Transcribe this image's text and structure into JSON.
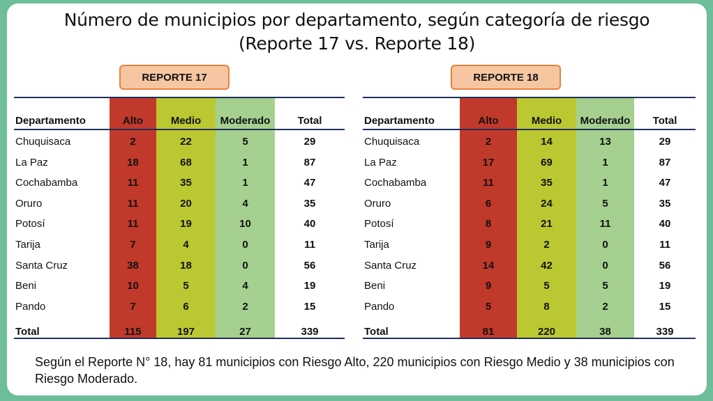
{
  "title_line1": "Número de municipios por departamento, según categoría de riesgo",
  "title_line2": "(Reporte 17 vs. Reporte 18)",
  "headers": [
    "Departamento",
    "Alto",
    "Medio",
    "Moderado",
    "Total"
  ],
  "colors": {
    "alto": "#c1392b",
    "medio": "#bcc832",
    "moderado": "#a5d08f",
    "label_bg": "#f6c6a3",
    "label_border": "#e8803c",
    "background": "#6fbe9a"
  },
  "reports": [
    {
      "label": "REPORTE 17",
      "rows": [
        [
          "Chuquisaca",
          "2",
          "22",
          "5",
          "29"
        ],
        [
          "La Paz",
          "18",
          "68",
          "1",
          "87"
        ],
        [
          "Cochabamba",
          "11",
          "35",
          "1",
          "47"
        ],
        [
          "Oruro",
          "11",
          "20",
          "4",
          "35"
        ],
        [
          "Potosí",
          "11",
          "19",
          "10",
          "40"
        ],
        [
          "Tarija",
          "7",
          "4",
          "0",
          "11"
        ],
        [
          "Santa Cruz",
          "38",
          "18",
          "0",
          "56"
        ],
        [
          "Beni",
          "10",
          "5",
          "4",
          "19"
        ],
        [
          "Pando",
          "7",
          "6",
          "2",
          "15"
        ]
      ],
      "total": [
        "Total",
        "115",
        "197",
        "27",
        "339"
      ]
    },
    {
      "label": "REPORTE 18",
      "rows": [
        [
          "Chuquisaca",
          "2",
          "14",
          "13",
          "29"
        ],
        [
          "La Paz",
          "17",
          "69",
          "1",
          "87"
        ],
        [
          "Cochabamba",
          "11",
          "35",
          "1",
          "47"
        ],
        [
          "Oruro",
          "6",
          "24",
          "5",
          "35"
        ],
        [
          "Potosí",
          "8",
          "21",
          "11",
          "40"
        ],
        [
          "Tarija",
          "9",
          "2",
          "0",
          "11"
        ],
        [
          "Santa Cruz",
          "14",
          "42",
          "0",
          "56"
        ],
        [
          "Beni",
          "9",
          "5",
          "5",
          "19"
        ],
        [
          "Pando",
          "5",
          "8",
          "2",
          "15"
        ]
      ],
      "total": [
        "Total",
        "81",
        "220",
        "38",
        "339"
      ]
    }
  ],
  "note": "Según el Reporte N° 18, hay 81 municipios con Riesgo Alto, 220 municipios con Riesgo Medio y 38 municipios con Riesgo Moderado."
}
